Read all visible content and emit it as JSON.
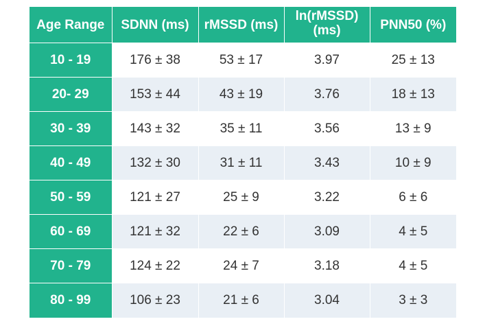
{
  "table": {
    "headers": [
      "Age Range",
      "SDNN (ms)",
      "rMSSD (ms)",
      "ln(rMSSD)\n(ms)",
      "PNN50 (%)"
    ],
    "rows": [
      [
        "10 - 19",
        "176 ± 38",
        "53 ± 17",
        "3.97",
        "25 ± 13"
      ],
      [
        "20- 29",
        "153 ± 44",
        "43 ± 19",
        "3.76",
        "18 ± 13"
      ],
      [
        "30 - 39",
        "143 ± 32",
        "35 ± 11",
        "3.56",
        "13 ± 9"
      ],
      [
        "40 - 49",
        "132 ± 30",
        "31 ± 11",
        "3.43",
        "10 ± 9"
      ],
      [
        "50 - 59",
        "121 ± 27",
        "25 ± 9",
        "3.22",
        "6 ± 6"
      ],
      [
        "60 - 69",
        "121 ± 32",
        "22 ± 6",
        "3.09",
        "4 ± 5"
      ],
      [
        "70 - 79",
        "124 ± 22",
        "24 ± 7",
        "3.18",
        "4 ± 5"
      ],
      [
        "80 - 99",
        "106 ± 23",
        "21 ± 6",
        "3.04",
        "3 ± 3"
      ]
    ]
  },
  "colors": {
    "header_bg": "#21b38d",
    "age_cell_bg": "#21b38d",
    "row_alt_bg": "#e9eff5",
    "row_bg": "#ffffff",
    "text": "#333333"
  }
}
